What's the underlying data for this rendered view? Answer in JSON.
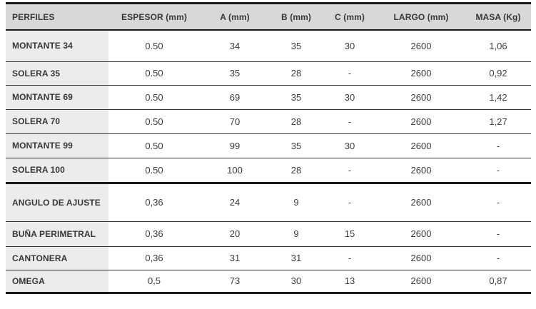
{
  "colors": {
    "header_bg": "#d8d8d8",
    "label_bg": "#ececec",
    "border_thick": "#1a1a1a",
    "border_thin": "#333333",
    "text_dark": "#383838",
    "text_value": "#3d3d3d"
  },
  "table": {
    "header": [
      "PERFILES",
      "ESPESOR (mm)",
      "A (mm)",
      "B (mm)",
      "C (mm)",
      "LARGO (mm)",
      "MASA (Kg)"
    ],
    "rows": [
      {
        "name": "MONTANTE 34",
        "values": [
          "0.50",
          "34",
          "35",
          "30",
          "2600",
          "1,06"
        ]
      },
      {
        "name": "SOLERA 35",
        "values": [
          "0.50",
          "35",
          "28",
          "-",
          "2600",
          "0,92"
        ]
      },
      {
        "name": "MONTANTE 69",
        "values": [
          "0.50",
          "69",
          "35",
          "30",
          "2600",
          "1,42"
        ]
      },
      {
        "name": "SOLERA 70",
        "values": [
          "0.50",
          "70",
          "28",
          "-",
          "2600",
          "1,27"
        ]
      },
      {
        "name": "MONTANTE 99",
        "values": [
          "0.50",
          "99",
          "35",
          "30",
          "2600",
          "-"
        ]
      },
      {
        "name": "SOLERA 100",
        "values": [
          "0.50",
          "100",
          "28",
          "-",
          "2600",
          "-"
        ]
      },
      {
        "name": "ANGULO DE AJUSTE",
        "values": [
          "0,36",
          "24",
          "9",
          "-",
          "2600",
          "-"
        ]
      },
      {
        "name": "BUÑA PERIMETRAL",
        "values": [
          "0,36",
          "20",
          "9",
          "15",
          "2600",
          "-"
        ]
      },
      {
        "name": "CANTONERA",
        "values": [
          "0,36",
          "31",
          "31",
          "-",
          "2600",
          "-"
        ]
      },
      {
        "name": "OMEGA",
        "values": [
          "0,5",
          "73",
          "30",
          "13",
          "2600",
          "0,87"
        ]
      }
    ]
  }
}
